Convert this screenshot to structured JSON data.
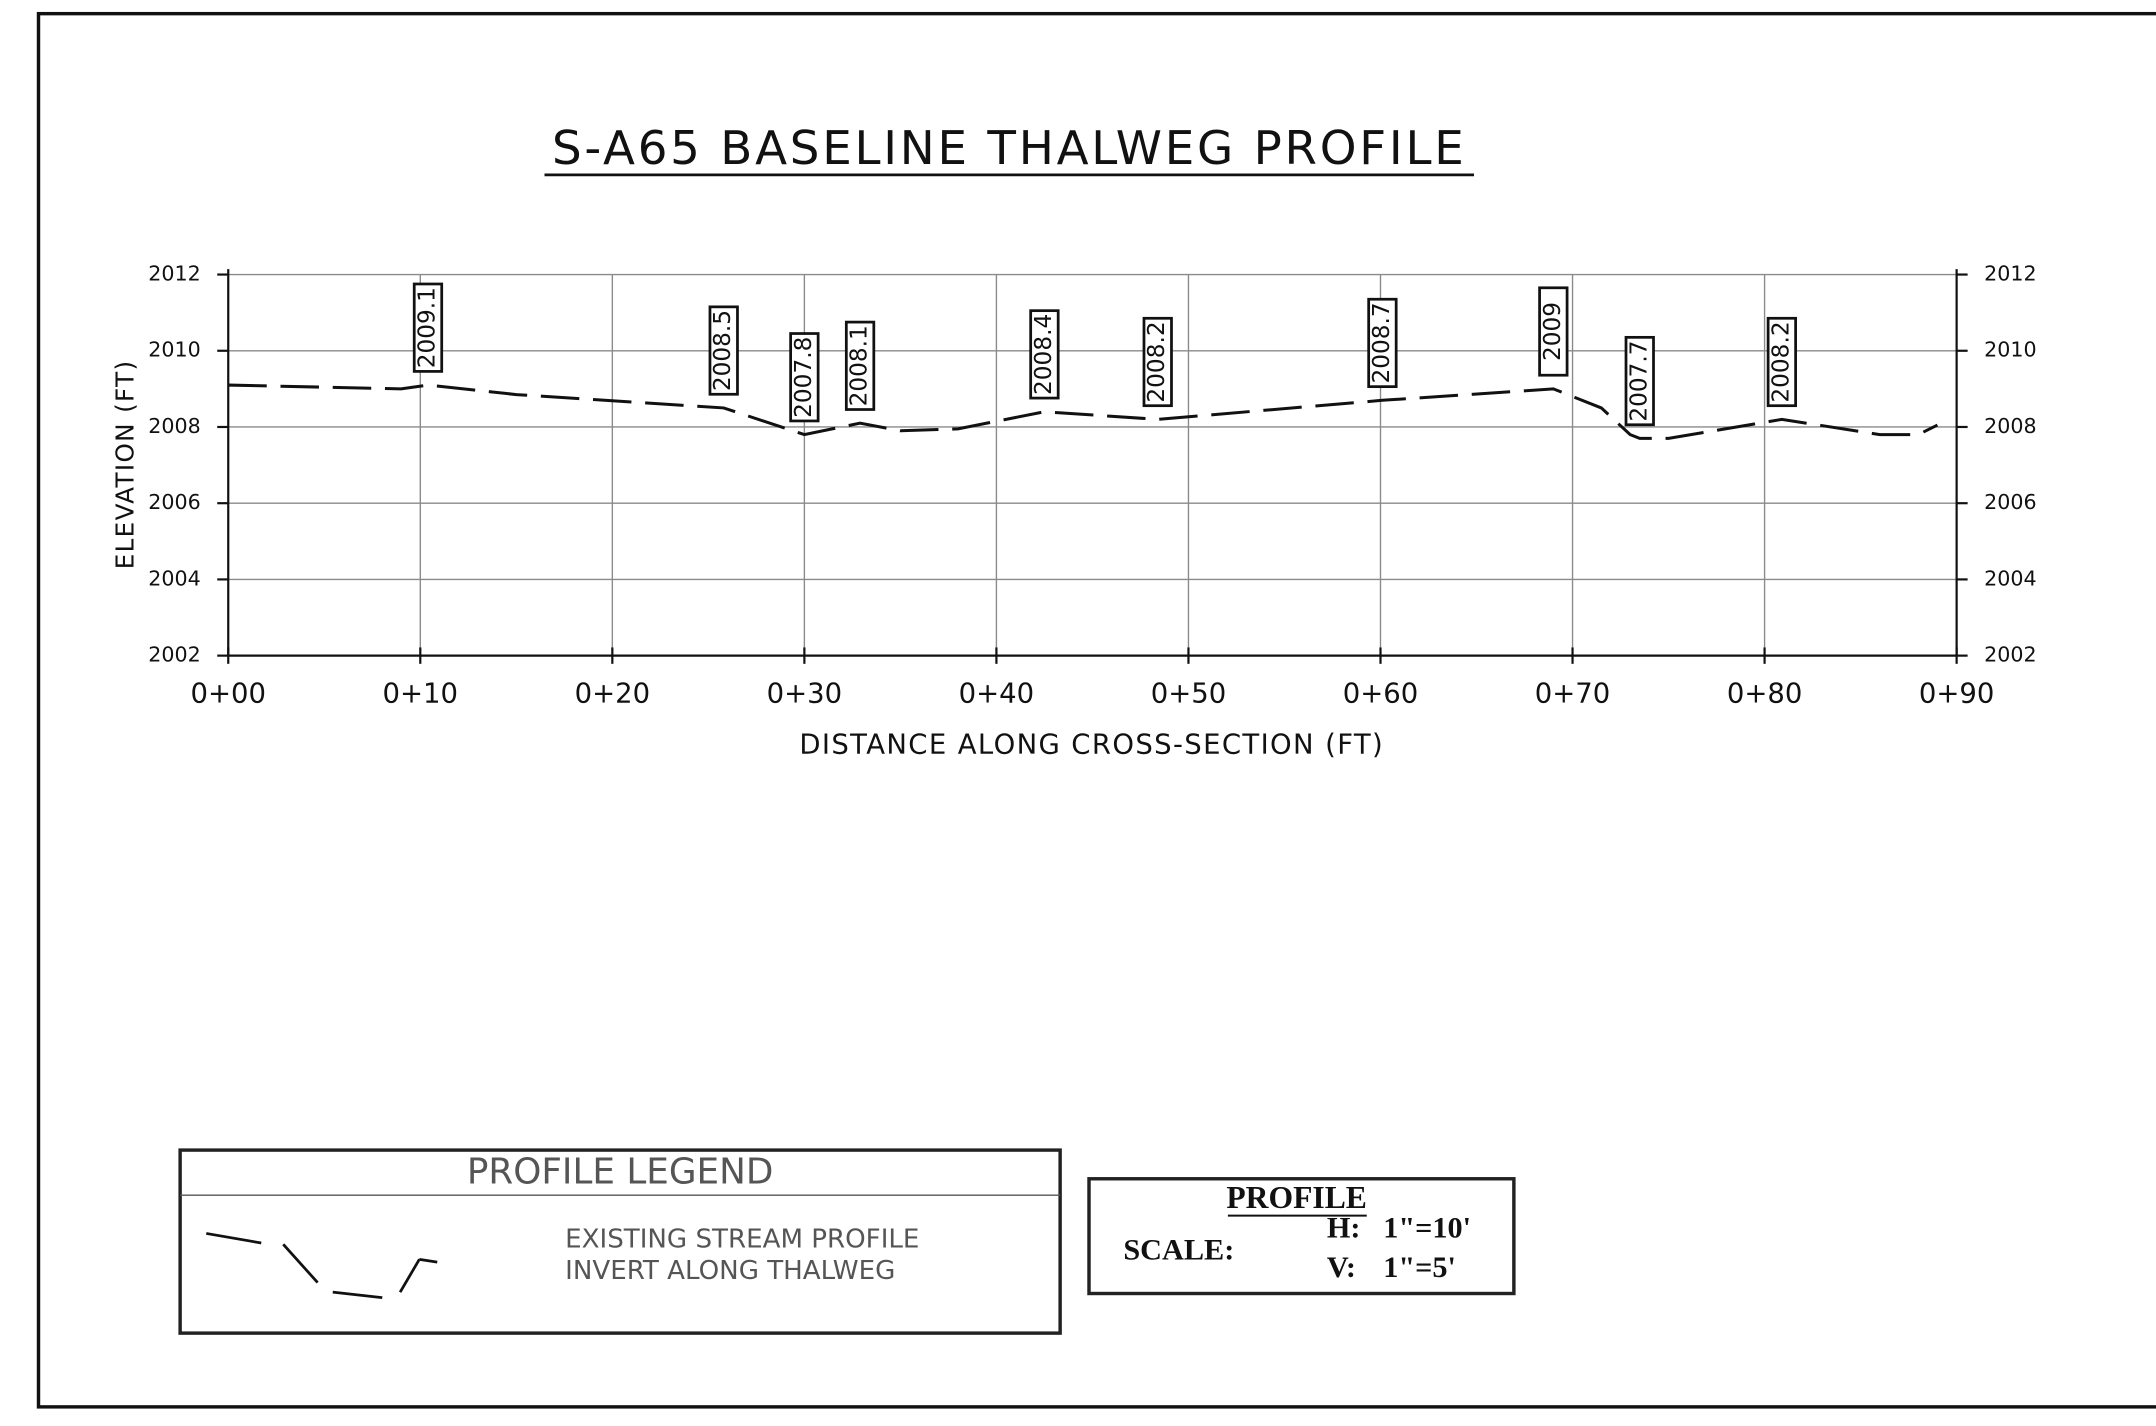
{
  "chart_data": {
    "type": "line",
    "title": "S-A65 BASELINE THALWEG PROFILE",
    "x_label": "DISTANCE ALONG CROSS-SECTION (FT)",
    "y_label": "ELEVATION (FT)",
    "x": [
      0,
      9,
      10.4,
      15,
      25.8,
      30,
      32.9,
      35,
      38,
      42.5,
      48.4,
      60.1,
      69,
      71.5,
      73,
      73.5,
      75,
      80.9,
      86,
      88,
      89
    ],
    "series": [
      {
        "name": "EXISTING STREAM PROFILE INVERT ALONG THALWEG",
        "color": "#111111",
        "values": [
          2009.1,
          2009.0,
          2009.1,
          2008.85,
          2008.5,
          2007.8,
          2008.1,
          2007.9,
          2007.95,
          2008.4,
          2008.2,
          2008.7,
          2009.0,
          2008.5,
          2007.8,
          2007.7,
          2007.7,
          2008.2,
          2007.8,
          2007.8,
          2008.05
        ]
      }
    ],
    "point_labels": [
      {
        "x": 10.4,
        "value": 2009.1
      },
      {
        "x": 25.8,
        "value": 2008.5
      },
      {
        "x": 30,
        "value": 2007.8
      },
      {
        "x": 32.9,
        "value": 2008.1
      },
      {
        "x": 42.5,
        "value": 2008.4
      },
      {
        "x": 48.4,
        "value": 2008.2
      },
      {
        "x": 60.1,
        "value": 2008.7
      },
      {
        "x": 69,
        "value": 2009.0
      },
      {
        "x": 73.5,
        "value": 2007.7
      },
      {
        "x": 80.9,
        "value": 2008.2
      }
    ],
    "xlim": [
      0,
      90
    ],
    "xticks": [
      {
        "value": 0,
        "label": "0+00"
      },
      {
        "value": 10,
        "label": "0+10"
      },
      {
        "value": 20,
        "label": "0+20"
      },
      {
        "value": 30,
        "label": "0+30"
      },
      {
        "value": 40,
        "label": "0+40"
      },
      {
        "value": 50,
        "label": "0+50"
      },
      {
        "value": 60,
        "label": "0+60"
      },
      {
        "value": 70,
        "label": "0+70"
      },
      {
        "value": 80,
        "label": "0+80"
      },
      {
        "value": 90,
        "label": "0+90"
      }
    ],
    "ylim": [
      2002,
      2012
    ],
    "yticks": [
      2002,
      2004,
      2006,
      2008,
      2010,
      2012
    ],
    "grid": true
  },
  "legend_box": {
    "title": "PROFILE LEGEND",
    "line1": "EXISTING  STREAM PROFILE",
    "line2": "INVERT ALONG THALWEG"
  },
  "scale_box": {
    "title": "PROFILE",
    "scale": "SCALE:",
    "h": "H:",
    "h_value": "1\"=10'",
    "v": "V:",
    "v_value": "1\"=5'"
  }
}
